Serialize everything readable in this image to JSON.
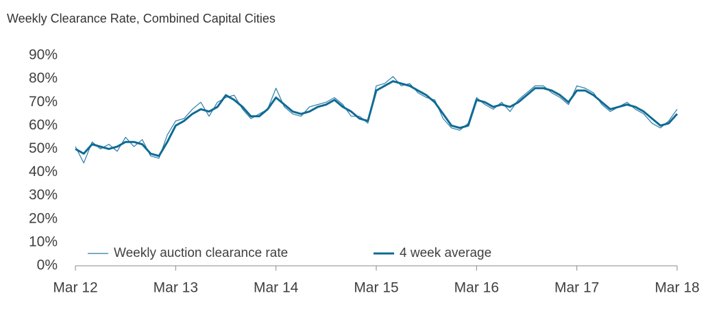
{
  "chart_data": {
    "type": "line",
    "title": "Weekly Clearance Rate, Combined Capital Cities",
    "x": [
      0,
      1,
      2,
      3,
      4,
      5,
      6,
      7,
      8,
      9,
      10,
      11,
      12,
      13,
      14,
      15,
      16,
      17,
      18,
      19,
      20,
      21,
      22,
      23,
      24,
      25,
      26,
      27,
      28,
      29,
      30,
      31,
      32,
      33,
      34,
      35,
      36,
      37,
      38,
      39,
      40,
      41,
      42,
      43,
      44,
      45,
      46,
      47,
      48,
      49,
      50,
      51,
      52,
      53,
      54,
      55,
      56,
      57,
      58,
      59,
      60,
      61,
      62,
      63,
      64,
      65,
      66,
      67,
      68,
      69,
      70,
      71,
      72
    ],
    "series": [
      {
        "name": "Weekly auction clearance rate",
        "color": "#2a7ba6",
        "width": 1.2,
        "values": [
          51,
          44,
          53,
          50,
          52,
          49,
          55,
          51,
          54,
          47,
          46,
          56,
          62,
          63,
          67,
          70,
          64,
          70,
          72,
          73,
          67,
          63,
          65,
          67,
          76,
          68,
          65,
          64,
          68,
          69,
          70,
          72,
          69,
          64,
          64,
          61,
          77,
          78,
          81,
          77,
          78,
          74,
          72,
          71,
          63,
          59,
          58,
          61,
          72,
          69,
          67,
          70,
          66,
          71,
          74,
          77,
          77,
          74,
          72,
          69,
          77,
          76,
          74,
          69,
          66,
          68,
          70,
          67,
          65,
          61,
          59,
          62,
          67
        ]
      },
      {
        "name": "4 week average",
        "color": "#0f6a94",
        "width": 3,
        "values": [
          50,
          48,
          52,
          51,
          50,
          51,
          53,
          53,
          52,
          48,
          47,
          53,
          60,
          62,
          65,
          67,
          66,
          68,
          73,
          71,
          68,
          64,
          64,
          67,
          72,
          69,
          66,
          65,
          66,
          68,
          69,
          71,
          68,
          66,
          63,
          62,
          75,
          77,
          79,
          78,
          77,
          75,
          73,
          70,
          65,
          60,
          59,
          60,
          71,
          70,
          68,
          69,
          68,
          70,
          73,
          76,
          76,
          75,
          73,
          70,
          75,
          75,
          73,
          70,
          67,
          68,
          69,
          68,
          66,
          63,
          60,
          61,
          65
        ]
      }
    ],
    "xlim": [
      0,
      72
    ],
    "xticks": [
      {
        "value": 0,
        "label": "Mar 12"
      },
      {
        "value": 12,
        "label": "Mar 13"
      },
      {
        "value": 24,
        "label": "Mar 14"
      },
      {
        "value": 36,
        "label": "Mar 15"
      },
      {
        "value": 48,
        "label": "Mar 16"
      },
      {
        "value": 60,
        "label": "Mar 17"
      },
      {
        "value": 72,
        "label": "Mar 18"
      }
    ],
    "ylim": [
      0,
      90
    ],
    "yticks": [
      {
        "value": 0,
        "label": "0%"
      },
      {
        "value": 10,
        "label": "10%"
      },
      {
        "value": 20,
        "label": "20%"
      },
      {
        "value": 30,
        "label": "30%"
      },
      {
        "value": 40,
        "label": "40%"
      },
      {
        "value": 50,
        "label": "50%"
      },
      {
        "value": 60,
        "label": "60%"
      },
      {
        "value": 70,
        "label": "70%"
      },
      {
        "value": 80,
        "label": "80%"
      },
      {
        "value": 90,
        "label": "90%"
      }
    ]
  }
}
